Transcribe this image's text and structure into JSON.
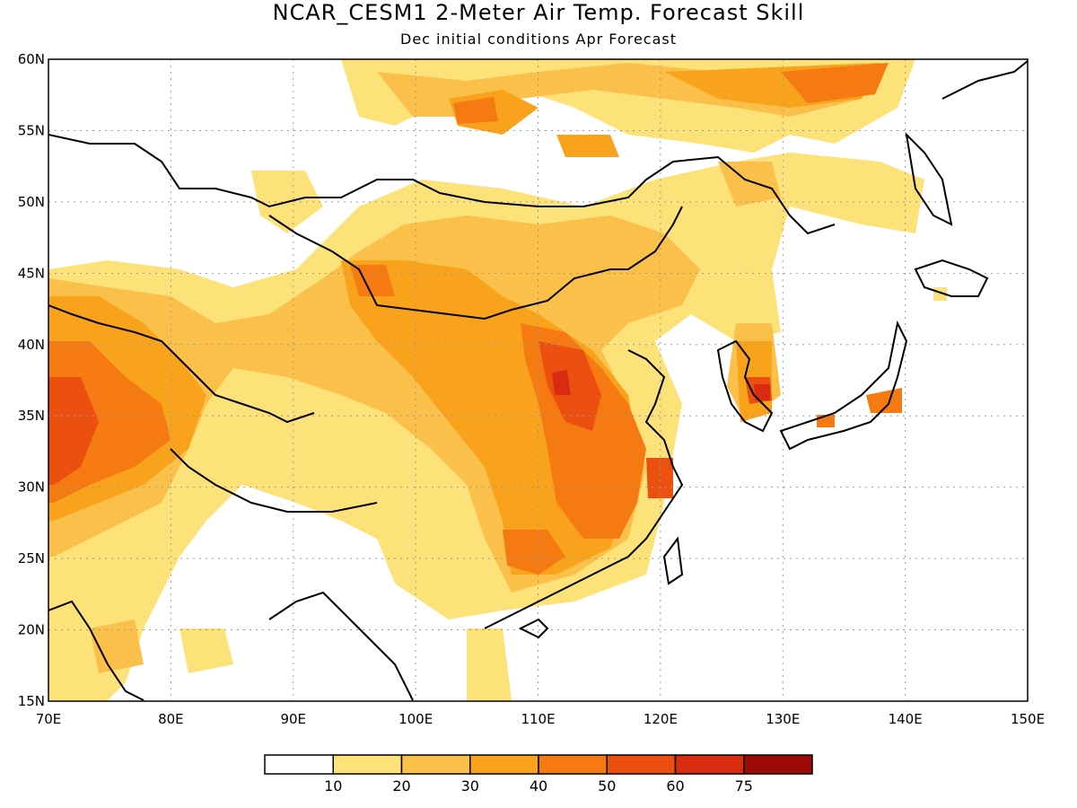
{
  "title": "NCAR_CESM1 2-Meter Air Temp. Forecast Skill",
  "subtitle": "Dec initial conditions  Apr Forecast",
  "map": {
    "lon_range": [
      70,
      150
    ],
    "lat_range": [
      15,
      60
    ],
    "lon_ticks": [
      "70E",
      "80E",
      "90E",
      "100E",
      "110E",
      "120E",
      "130E",
      "140E",
      "150E"
    ],
    "lat_ticks": [
      "15N",
      "20N",
      "25N",
      "30N",
      "35N",
      "40N",
      "45N",
      "50N",
      "55N",
      "60N"
    ],
    "gridlines": true
  },
  "colorbar": {
    "levels": [
      "10",
      "20",
      "30",
      "40",
      "50",
      "60",
      "75"
    ],
    "colors": [
      "#ffffff",
      "#fde27a",
      "#fbc04a",
      "#f9a21c",
      "#f57a12",
      "#ec5011",
      "#d92b10",
      "#9d0b06"
    ]
  }
}
